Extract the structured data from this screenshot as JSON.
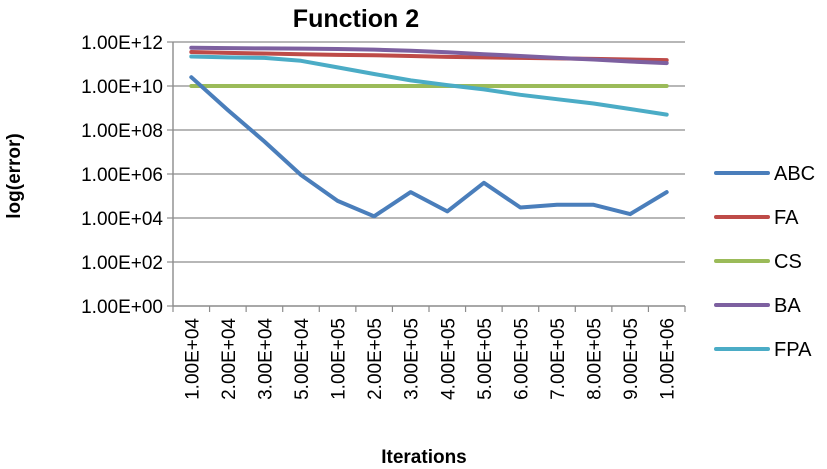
{
  "chart_data": {
    "type": "line",
    "title": "Function 2",
    "xlabel": "Iterations",
    "ylabel": "log(error)",
    "y_scale": "log",
    "ylim": [
      1,
      1000000000000
    ],
    "grid": true,
    "legend_position": "right",
    "categories": [
      "1.00E+04",
      "2.00E+04",
      "3.00E+04",
      "5.00E+04",
      "1.00E+05",
      "2.00E+05",
      "3.00E+05",
      "4.00E+05",
      "5.00E+05",
      "6.00E+05",
      "7.00E+05",
      "8.00E+05",
      "9.00E+05",
      "1.00E+06"
    ],
    "y_tick_labels": [
      "1.00E+00",
      "1.00E+02",
      "1.00E+04",
      "1.00E+06",
      "1.00E+08",
      "1.00E+10",
      "1.00E+12"
    ],
    "series": [
      {
        "name": "ABC",
        "color": "#4a7ebb",
        "values": [
          25000000000,
          800000000,
          30000000,
          900000,
          60000,
          12000,
          150000,
          20000,
          400000,
          30000,
          40000,
          40000,
          15000,
          150000
        ]
      },
      {
        "name": "FA",
        "color": "#be4b48",
        "values": [
          350000000000,
          320000000000,
          300000000000,
          280000000000,
          260000000000,
          250000000000,
          230000000000,
          210000000000,
          200000000000,
          190000000000,
          180000000000,
          170000000000,
          160000000000,
          150000000000
        ]
      },
      {
        "name": "CS",
        "color": "#9bbb59",
        "values": [
          10000000000,
          10000000000,
          10000000000,
          10000000000,
          10000000000,
          10000000000,
          10000000000,
          10000000000,
          10000000000,
          10000000000,
          10000000000,
          10000000000,
          10000000000,
          10000000000
        ]
      },
      {
        "name": "BA",
        "color": "#7d60a0",
        "values": [
          550000000000,
          530000000000,
          510000000000,
          500000000000,
          480000000000,
          450000000000,
          400000000000,
          340000000000,
          280000000000,
          230000000000,
          190000000000,
          160000000000,
          130000000000,
          110000000000
        ]
      },
      {
        "name": "FPA",
        "color": "#4bacc6",
        "values": [
          220000000000,
          200000000000,
          190000000000,
          140000000000,
          70000000000,
          35000000000,
          18000000000,
          11000000000,
          7000000000,
          4000000000,
          2500000000,
          1600000000,
          900000000,
          500000000
        ]
      }
    ]
  }
}
